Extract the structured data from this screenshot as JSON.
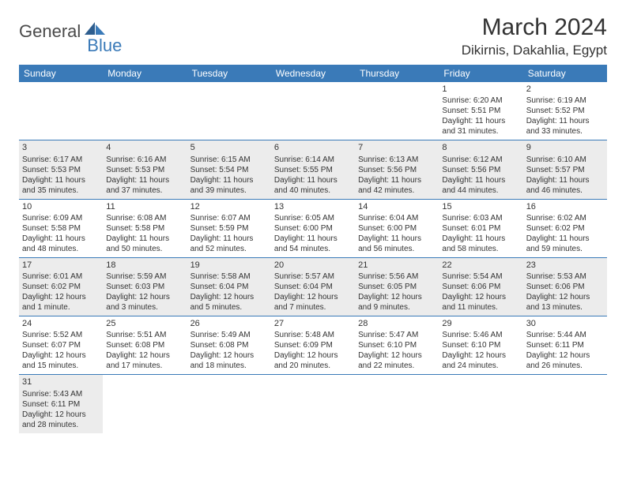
{
  "logo": {
    "word1": "General",
    "word2": "Blue"
  },
  "title": "March 2024",
  "location": "Dikirnis, Dakahlia, Egypt",
  "colors": {
    "header_bg": "#3a7ab8",
    "header_text": "#ffffff",
    "shaded_row": "#ececec",
    "border": "#3a7ab8",
    "logo_gray": "#4a4a4a",
    "logo_blue": "#3a7ab8"
  },
  "dayHeaders": [
    "Sunday",
    "Monday",
    "Tuesday",
    "Wednesday",
    "Thursday",
    "Friday",
    "Saturday"
  ],
  "weeks": [
    {
      "shaded": false,
      "cells": [
        null,
        null,
        null,
        null,
        null,
        {
          "n": "1",
          "sr": "Sunrise: 6:20 AM",
          "ss": "Sunset: 5:51 PM",
          "dl": "Daylight: 11 hours and 31 minutes."
        },
        {
          "n": "2",
          "sr": "Sunrise: 6:19 AM",
          "ss": "Sunset: 5:52 PM",
          "dl": "Daylight: 11 hours and 33 minutes."
        }
      ]
    },
    {
      "shaded": true,
      "cells": [
        {
          "n": "3",
          "sr": "Sunrise: 6:17 AM",
          "ss": "Sunset: 5:53 PM",
          "dl": "Daylight: 11 hours and 35 minutes."
        },
        {
          "n": "4",
          "sr": "Sunrise: 6:16 AM",
          "ss": "Sunset: 5:53 PM",
          "dl": "Daylight: 11 hours and 37 minutes."
        },
        {
          "n": "5",
          "sr": "Sunrise: 6:15 AM",
          "ss": "Sunset: 5:54 PM",
          "dl": "Daylight: 11 hours and 39 minutes."
        },
        {
          "n": "6",
          "sr": "Sunrise: 6:14 AM",
          "ss": "Sunset: 5:55 PM",
          "dl": "Daylight: 11 hours and 40 minutes."
        },
        {
          "n": "7",
          "sr": "Sunrise: 6:13 AM",
          "ss": "Sunset: 5:56 PM",
          "dl": "Daylight: 11 hours and 42 minutes."
        },
        {
          "n": "8",
          "sr": "Sunrise: 6:12 AM",
          "ss": "Sunset: 5:56 PM",
          "dl": "Daylight: 11 hours and 44 minutes."
        },
        {
          "n": "9",
          "sr": "Sunrise: 6:10 AM",
          "ss": "Sunset: 5:57 PM",
          "dl": "Daylight: 11 hours and 46 minutes."
        }
      ]
    },
    {
      "shaded": false,
      "cells": [
        {
          "n": "10",
          "sr": "Sunrise: 6:09 AM",
          "ss": "Sunset: 5:58 PM",
          "dl": "Daylight: 11 hours and 48 minutes."
        },
        {
          "n": "11",
          "sr": "Sunrise: 6:08 AM",
          "ss": "Sunset: 5:58 PM",
          "dl": "Daylight: 11 hours and 50 minutes."
        },
        {
          "n": "12",
          "sr": "Sunrise: 6:07 AM",
          "ss": "Sunset: 5:59 PM",
          "dl": "Daylight: 11 hours and 52 minutes."
        },
        {
          "n": "13",
          "sr": "Sunrise: 6:05 AM",
          "ss": "Sunset: 6:00 PM",
          "dl": "Daylight: 11 hours and 54 minutes."
        },
        {
          "n": "14",
          "sr": "Sunrise: 6:04 AM",
          "ss": "Sunset: 6:00 PM",
          "dl": "Daylight: 11 hours and 56 minutes."
        },
        {
          "n": "15",
          "sr": "Sunrise: 6:03 AM",
          "ss": "Sunset: 6:01 PM",
          "dl": "Daylight: 11 hours and 58 minutes."
        },
        {
          "n": "16",
          "sr": "Sunrise: 6:02 AM",
          "ss": "Sunset: 6:02 PM",
          "dl": "Daylight: 11 hours and 59 minutes."
        }
      ]
    },
    {
      "shaded": true,
      "cells": [
        {
          "n": "17",
          "sr": "Sunrise: 6:01 AM",
          "ss": "Sunset: 6:02 PM",
          "dl": "Daylight: 12 hours and 1 minute."
        },
        {
          "n": "18",
          "sr": "Sunrise: 5:59 AM",
          "ss": "Sunset: 6:03 PM",
          "dl": "Daylight: 12 hours and 3 minutes."
        },
        {
          "n": "19",
          "sr": "Sunrise: 5:58 AM",
          "ss": "Sunset: 6:04 PM",
          "dl": "Daylight: 12 hours and 5 minutes."
        },
        {
          "n": "20",
          "sr": "Sunrise: 5:57 AM",
          "ss": "Sunset: 6:04 PM",
          "dl": "Daylight: 12 hours and 7 minutes."
        },
        {
          "n": "21",
          "sr": "Sunrise: 5:56 AM",
          "ss": "Sunset: 6:05 PM",
          "dl": "Daylight: 12 hours and 9 minutes."
        },
        {
          "n": "22",
          "sr": "Sunrise: 5:54 AM",
          "ss": "Sunset: 6:06 PM",
          "dl": "Daylight: 12 hours and 11 minutes."
        },
        {
          "n": "23",
          "sr": "Sunrise: 5:53 AM",
          "ss": "Sunset: 6:06 PM",
          "dl": "Daylight: 12 hours and 13 minutes."
        }
      ]
    },
    {
      "shaded": false,
      "cells": [
        {
          "n": "24",
          "sr": "Sunrise: 5:52 AM",
          "ss": "Sunset: 6:07 PM",
          "dl": "Daylight: 12 hours and 15 minutes."
        },
        {
          "n": "25",
          "sr": "Sunrise: 5:51 AM",
          "ss": "Sunset: 6:08 PM",
          "dl": "Daylight: 12 hours and 17 minutes."
        },
        {
          "n": "26",
          "sr": "Sunrise: 5:49 AM",
          "ss": "Sunset: 6:08 PM",
          "dl": "Daylight: 12 hours and 18 minutes."
        },
        {
          "n": "27",
          "sr": "Sunrise: 5:48 AM",
          "ss": "Sunset: 6:09 PM",
          "dl": "Daylight: 12 hours and 20 minutes."
        },
        {
          "n": "28",
          "sr": "Sunrise: 5:47 AM",
          "ss": "Sunset: 6:10 PM",
          "dl": "Daylight: 12 hours and 22 minutes."
        },
        {
          "n": "29",
          "sr": "Sunrise: 5:46 AM",
          "ss": "Sunset: 6:10 PM",
          "dl": "Daylight: 12 hours and 24 minutes."
        },
        {
          "n": "30",
          "sr": "Sunrise: 5:44 AM",
          "ss": "Sunset: 6:11 PM",
          "dl": "Daylight: 12 hours and 26 minutes."
        }
      ]
    },
    {
      "shaded": true,
      "cells": [
        {
          "n": "31",
          "sr": "Sunrise: 5:43 AM",
          "ss": "Sunset: 6:11 PM",
          "dl": "Daylight: 12 hours and 28 minutes."
        },
        null,
        null,
        null,
        null,
        null,
        null
      ]
    }
  ]
}
